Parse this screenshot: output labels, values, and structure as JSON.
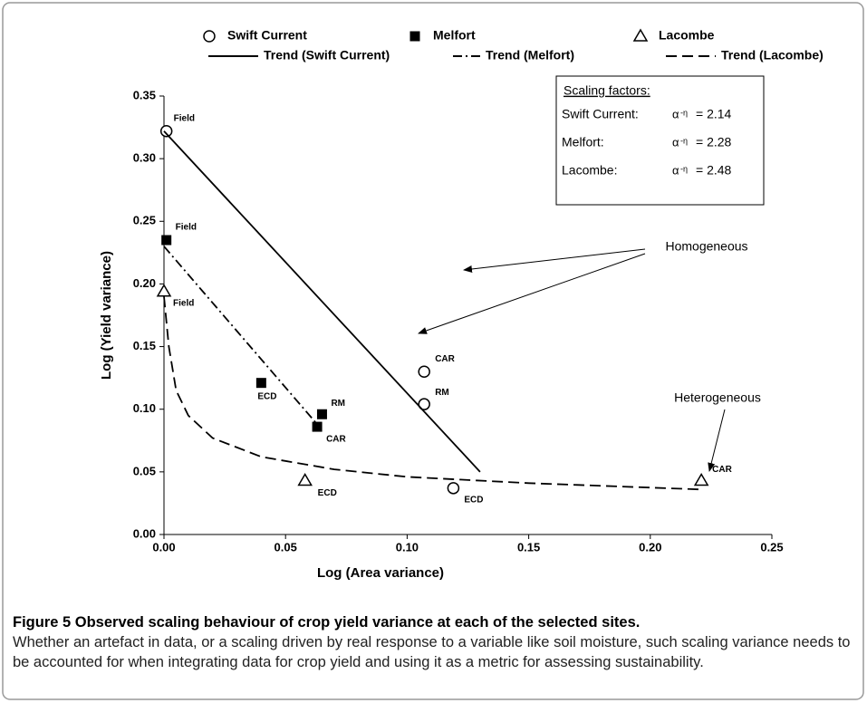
{
  "chart_data": {
    "type": "scatter",
    "x_label": "Log (Area variance)",
    "y_label": "Log (Yield variance)",
    "xlim": [
      0,
      0.25
    ],
    "ylim": [
      0,
      0.35
    ],
    "xticks": [
      {
        "value": 0,
        "label": "0.00"
      },
      {
        "value": 0.05,
        "label": "0.05"
      },
      {
        "value": 0.1,
        "label": "0.10"
      },
      {
        "value": 0.15,
        "label": "0.15"
      },
      {
        "value": 0.2,
        "label": "0.20"
      },
      {
        "value": 0.25,
        "label": "0.25"
      }
    ],
    "yticks": [
      {
        "value": 0,
        "label": "0.00"
      },
      {
        "value": 0.05,
        "label": "0.05"
      },
      {
        "value": 0.1,
        "label": "0.10"
      },
      {
        "value": 0.15,
        "label": "0.15"
      },
      {
        "value": 0.2,
        "label": "0.20"
      },
      {
        "value": 0.25,
        "label": "0.25"
      },
      {
        "value": 0.3,
        "label": "0.30"
      },
      {
        "value": 0.35,
        "label": "0.35"
      }
    ],
    "series": [
      {
        "name": "Swift Current",
        "color": "#000000",
        "marker": "circle",
        "x": [
          0.001,
          0.107,
          0.107,
          0.119
        ],
        "values": [
          0.322,
          0.13,
          0.104,
          0.037
        ],
        "point_labels": [
          "Field",
          "CAR",
          "RM",
          "ECD"
        ]
      },
      {
        "name": "Melfort",
        "color": "#000000",
        "marker": "square",
        "x": [
          0.001,
          0.04,
          0.065,
          0.063
        ],
        "values": [
          0.235,
          0.121,
          0.096,
          0.086
        ],
        "point_labels": [
          "Field",
          "ECD",
          "RM",
          "CAR"
        ]
      },
      {
        "name": "Lacombe",
        "color": "#000000",
        "marker": "triangle",
        "x": [
          0.0,
          0.058,
          0.221
        ],
        "values": [
          0.194,
          0.043,
          0.043
        ],
        "point_labels": [
          "Field",
          "ECD",
          "CAR"
        ]
      },
      {
        "name": "Trend (Swift Current)",
        "color": "#000000",
        "line_style": "solid",
        "x": [
          0.0,
          0.13
        ],
        "values": [
          0.322,
          0.05
        ]
      },
      {
        "name": "Trend (Melfort)",
        "color": "#000000",
        "line_style": "dashdot",
        "x": [
          0.0,
          0.063
        ],
        "values": [
          0.23,
          0.088
        ]
      },
      {
        "name": "Trend (Lacombe)",
        "color": "#000000",
        "line_style": "dashed",
        "x": [
          0.0,
          0.002,
          0.005,
          0.01,
          0.02,
          0.04,
          0.07,
          0.1,
          0.15,
          0.22
        ],
        "values": [
          0.19,
          0.15,
          0.115,
          0.095,
          0.077,
          0.062,
          0.052,
          0.046,
          0.041,
          0.036
        ]
      }
    ],
    "annotations": [
      "Homogeneous",
      "Heterogeneous"
    ],
    "inset": {
      "title": "Scaling factors:",
      "rows": [
        {
          "site": "Swift Current:",
          "symbol": "α",
          "exponent": "-η",
          "equals": "= 2.14"
        },
        {
          "site": "Melfort:",
          "symbol": "α",
          "exponent": "-η",
          "equals": "= 2.28"
        },
        {
          "site": "Lacombe:",
          "symbol": "α",
          "exponent": "-η",
          "equals": "= 2.48"
        }
      ]
    }
  },
  "caption": {
    "title": "Figure 5 Observed scaling behaviour of crop yield variance at each of the selected sites.",
    "text": "Whether an artefact in data, or a scaling driven by real response to a variable like soil moisture, such scaling variance needs to be accounted for when integrating data for crop yield and using it as a metric for assessing sustainability."
  }
}
